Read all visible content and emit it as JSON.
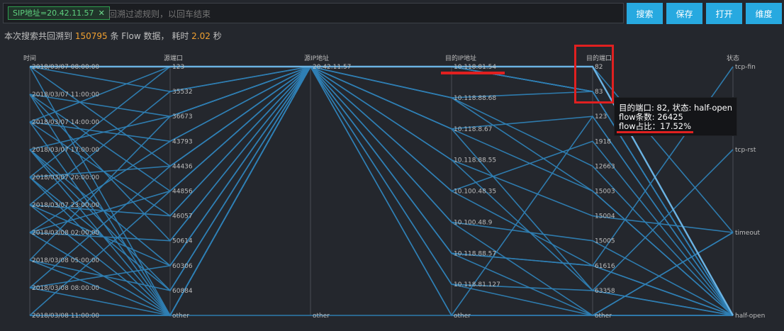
{
  "filter": {
    "tag_label": "SIP地址=20.42.11.57",
    "tag_close": "✕",
    "placeholder": "回溯过滤规则，以回车结束"
  },
  "buttons": {
    "search": "搜索",
    "save": "保存",
    "open": "打开",
    "dimension": "维度"
  },
  "summary": {
    "prefix": "本次搜索共回溯到",
    "count": "150795",
    "middle": "条 Flow 数据， 耗时",
    "time": "2.02",
    "suffix": "秒"
  },
  "colors": {
    "accent": "#27a9e0",
    "line": "#2f7fb4",
    "highlight_line": "#6fb6e6",
    "alert": "#e02020",
    "orange": "#f0a030"
  },
  "chart_data": {
    "type": "parallel-coordinates",
    "axes": [
      {
        "name": "时间",
        "ticks": [
          "2018/03/07 08:00:00",
          "2018/03/07 11:00:00",
          "2018/03/07 14:00:00",
          "2018/03/07 17:00:00",
          "2018/03/07 20:00:00",
          "2018/03/07 23:00:00",
          "2018/03/08 02:00:00",
          "2018/03/08 05:00:00",
          "2018/03/08 08:00:00",
          "2018/03/08 11:00:00"
        ]
      },
      {
        "name": "源端口",
        "ticks": [
          "123",
          "35532",
          "36673",
          "43793",
          "44436",
          "44856",
          "46057",
          "50614",
          "60306",
          "60884",
          "other"
        ]
      },
      {
        "name": "源IP地址",
        "ticks": [
          "20.42.11.57",
          "other"
        ]
      },
      {
        "name": "目的IP地址",
        "ticks": [
          "10.118.81.54",
          "10.118.88.68",
          "10.118.8.67",
          "10.118.88.55",
          "10.100.48.35",
          "10.100.48.9",
          "10.118.88.57",
          "10.118.81.127",
          "other"
        ]
      },
      {
        "name": "目的端口",
        "ticks": [
          "82",
          "83",
          "123",
          "1918",
          "12663",
          "15003",
          "15004",
          "15005",
          "61616",
          "63358",
          "other"
        ]
      },
      {
        "name": "状态",
        "ticks": [
          "tcp-fin",
          "tcp-rst",
          "timeout",
          "half-open"
        ]
      }
    ],
    "flows": [
      [
        0,
        0,
        0,
        0,
        0,
        3
      ],
      [
        0,
        1,
        0,
        1,
        1,
        3
      ],
      [
        0,
        4,
        0,
        0,
        0,
        2
      ],
      [
        0,
        10,
        0,
        6,
        8,
        3
      ],
      [
        1,
        2,
        0,
        0,
        1,
        3
      ],
      [
        1,
        5,
        0,
        2,
        2,
        3
      ],
      [
        1,
        10,
        0,
        3,
        9,
        3
      ],
      [
        1,
        7,
        0,
        0,
        0,
        3
      ],
      [
        2,
        3,
        0,
        0,
        0,
        3
      ],
      [
        2,
        6,
        0,
        4,
        3,
        3
      ],
      [
        2,
        10,
        0,
        5,
        10,
        2
      ],
      [
        2,
        0,
        0,
        0,
        0,
        3
      ],
      [
        3,
        8,
        0,
        0,
        1,
        3
      ],
      [
        3,
        9,
        0,
        1,
        4,
        3
      ],
      [
        3,
        10,
        0,
        7,
        9,
        1
      ],
      [
        3,
        2,
        0,
        0,
        0,
        3
      ],
      [
        4,
        0,
        0,
        2,
        5,
        3
      ],
      [
        4,
        4,
        0,
        0,
        0,
        3
      ],
      [
        4,
        10,
        0,
        6,
        10,
        3
      ],
      [
        4,
        9,
        0,
        0,
        1,
        3
      ],
      [
        5,
        1,
        0,
        3,
        6,
        2
      ],
      [
        5,
        10,
        0,
        0,
        0,
        3
      ],
      [
        5,
        6,
        0,
        4,
        8,
        0
      ],
      [
        5,
        8,
        0,
        0,
        0,
        3
      ],
      [
        6,
        5,
        0,
        5,
        7,
        3
      ],
      [
        6,
        10,
        0,
        0,
        1,
        3
      ],
      [
        6,
        3,
        0,
        8,
        2,
        3
      ],
      [
        6,
        7,
        0,
        0,
        0,
        3
      ],
      [
        7,
        9,
        0,
        6,
        8,
        3
      ],
      [
        7,
        10,
        0,
        0,
        0,
        3
      ],
      [
        7,
        2,
        0,
        1,
        5,
        3
      ],
      [
        8,
        10,
        0,
        0,
        1,
        3
      ],
      [
        8,
        8,
        0,
        7,
        10,
        2
      ],
      [
        8,
        4,
        0,
        0,
        0,
        3
      ],
      [
        9,
        10,
        0,
        0,
        0,
        3
      ],
      [
        9,
        10,
        0,
        8,
        10,
        3
      ],
      [
        9,
        5,
        0,
        2,
        9,
        3
      ],
      [
        9,
        10,
        1,
        8,
        10,
        3
      ]
    ],
    "highlight": [
      0,
      0,
      0,
      0,
      0,
      3
    ],
    "tooltip": {
      "line1": "目的端口: 82, 状态: half-open",
      "line2": "flow条数: 26425",
      "line3": "flow占比：17.52%"
    }
  }
}
